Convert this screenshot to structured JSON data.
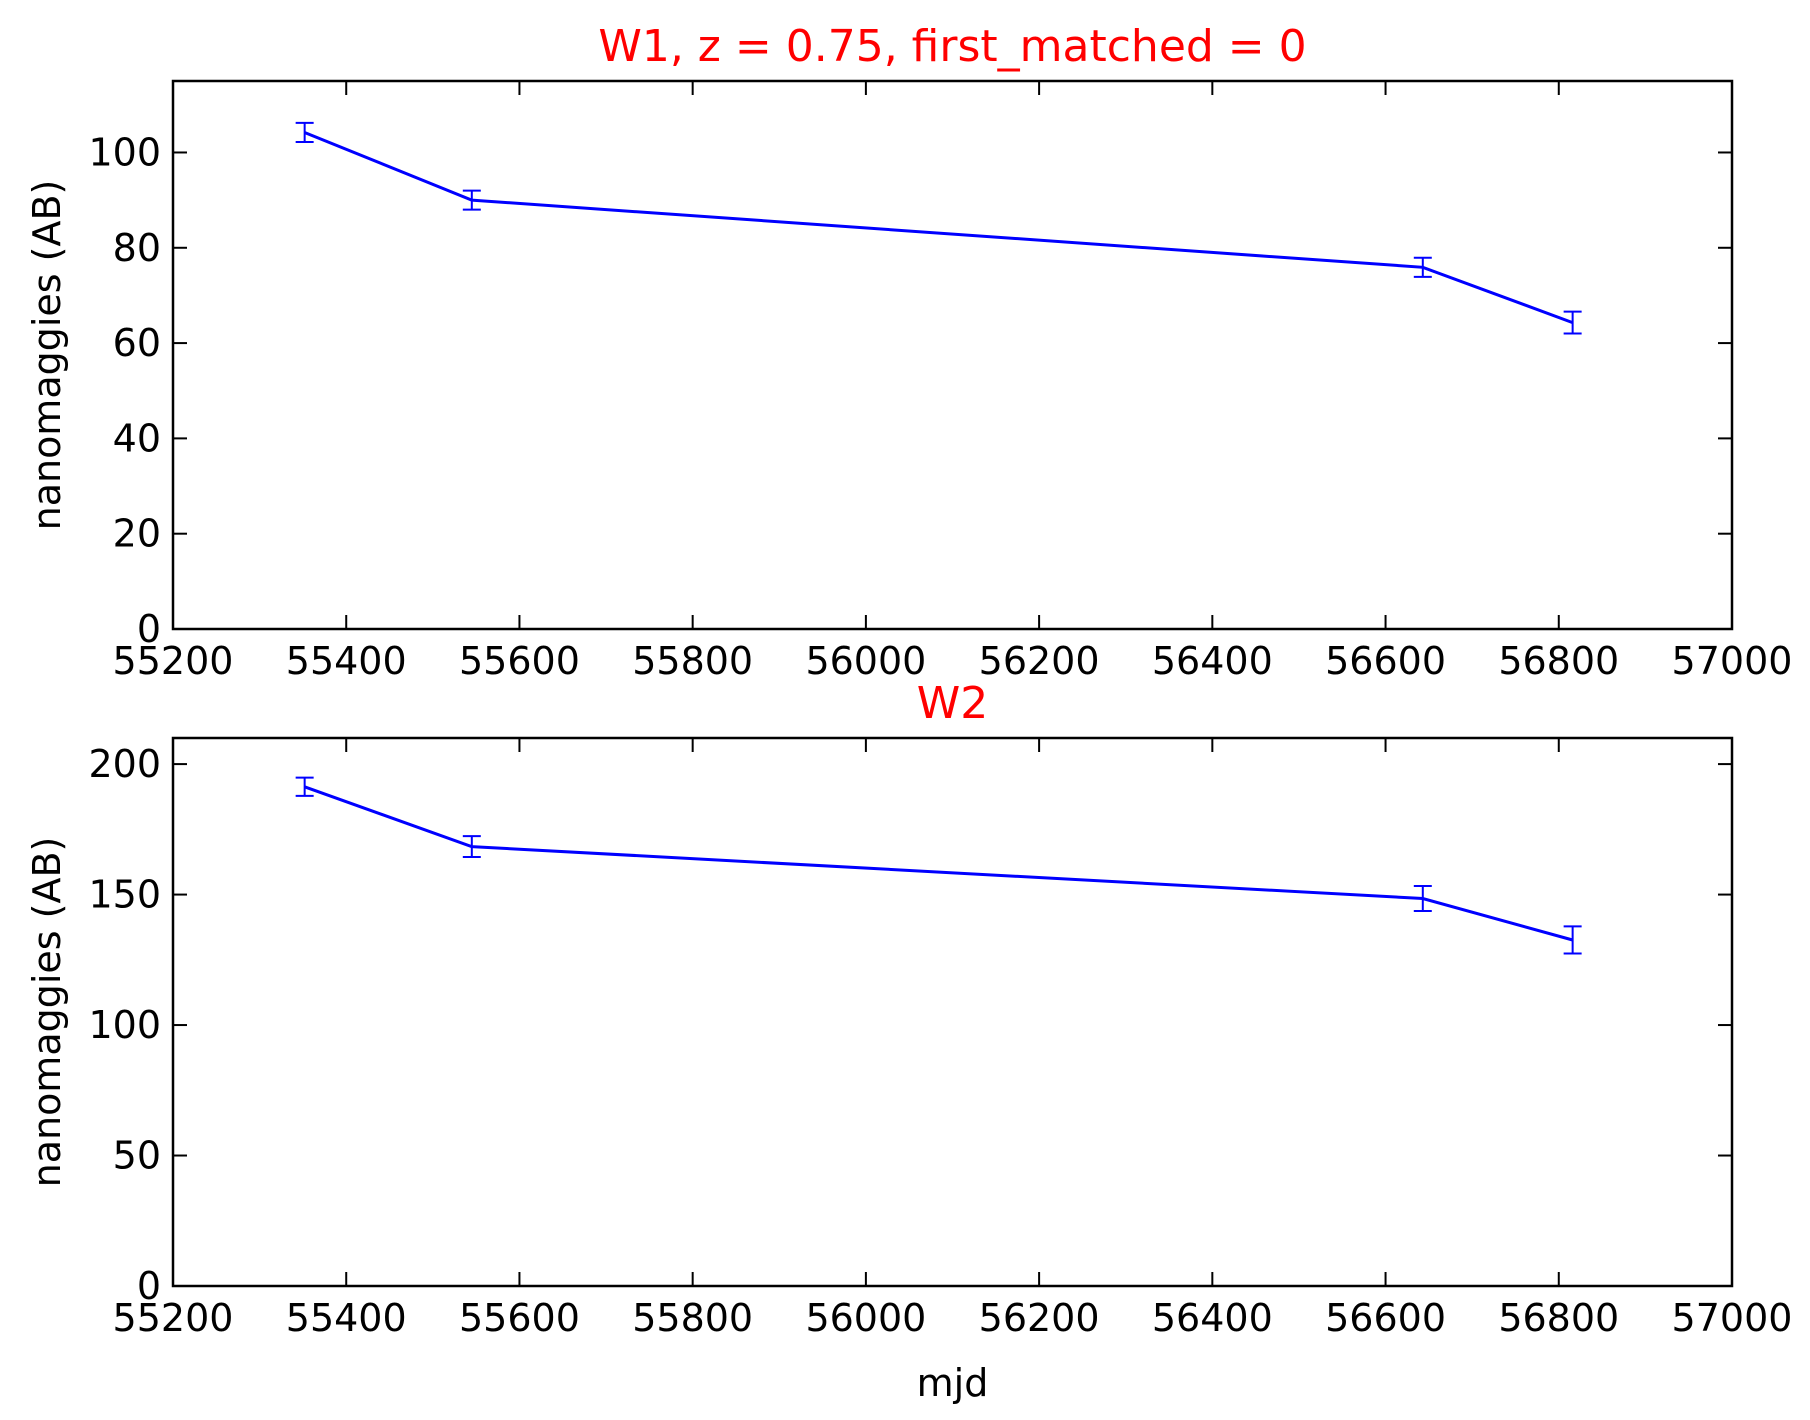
{
  "chart_data": [
    {
      "type": "line",
      "title": "W1, z = 0.75, first_matched = 0",
      "title_color": "#ff0000",
      "xlabel": "",
      "ylabel": "nanomaggies (AB)",
      "xlim": [
        55200,
        57000
      ],
      "ylim": [
        0,
        115
      ],
      "xticks": [
        55200,
        55400,
        55600,
        55800,
        56000,
        56200,
        56400,
        56600,
        56800,
        57000
      ],
      "yticks": [
        0,
        20,
        40,
        60,
        80,
        100
      ],
      "grid": false,
      "series": [
        {
          "color": "#0000ff",
          "x": [
            55352,
            55545,
            56643,
            56816
          ],
          "y": [
            104.2,
            90.0,
            75.9,
            64.3
          ],
          "yerr": [
            2.0,
            2.0,
            2.0,
            2.3
          ]
        }
      ]
    },
    {
      "type": "line",
      "title": "W2",
      "title_color": "#ff0000",
      "xlabel": "mjd",
      "ylabel": "nanomaggies (AB)",
      "xlim": [
        55200,
        57000
      ],
      "ylim": [
        0,
        210
      ],
      "xticks": [
        55200,
        55400,
        55600,
        55800,
        56000,
        56200,
        56400,
        56600,
        56800,
        57000
      ],
      "yticks": [
        0,
        50,
        100,
        150,
        200
      ],
      "grid": false,
      "series": [
        {
          "color": "#0000ff",
          "x": [
            55352,
            55545,
            56643,
            56816
          ],
          "y": [
            191.3,
            168.4,
            148.5,
            132.6
          ],
          "yerr": [
            3.5,
            4.0,
            4.8,
            5.2
          ]
        }
      ]
    }
  ]
}
